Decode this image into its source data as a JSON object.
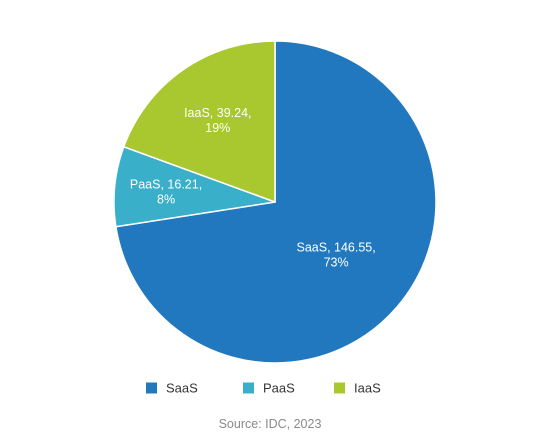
{
  "chart_data": {
    "type": "pie",
    "categories": [
      "SaaS",
      "PaaS",
      "IaaS"
    ],
    "values": [
      146.55,
      16.21,
      39.24
    ],
    "percent_labels": [
      "73%",
      "8%",
      "19%"
    ],
    "slice_labels": [
      [
        "SaaS, 146.55,",
        "73%"
      ],
      [
        "PaaS, 16.21,",
        "8%"
      ],
      [
        "IaaS, 39.24,",
        "19%"
      ]
    ],
    "colors": [
      "#2178be",
      "#3aafc9",
      "#a9c72f"
    ],
    "legend": {
      "placement": "bottom",
      "items": [
        "SaaS",
        "PaaS",
        "IaaS"
      ]
    },
    "source": "Source: IDC, 2023"
  }
}
